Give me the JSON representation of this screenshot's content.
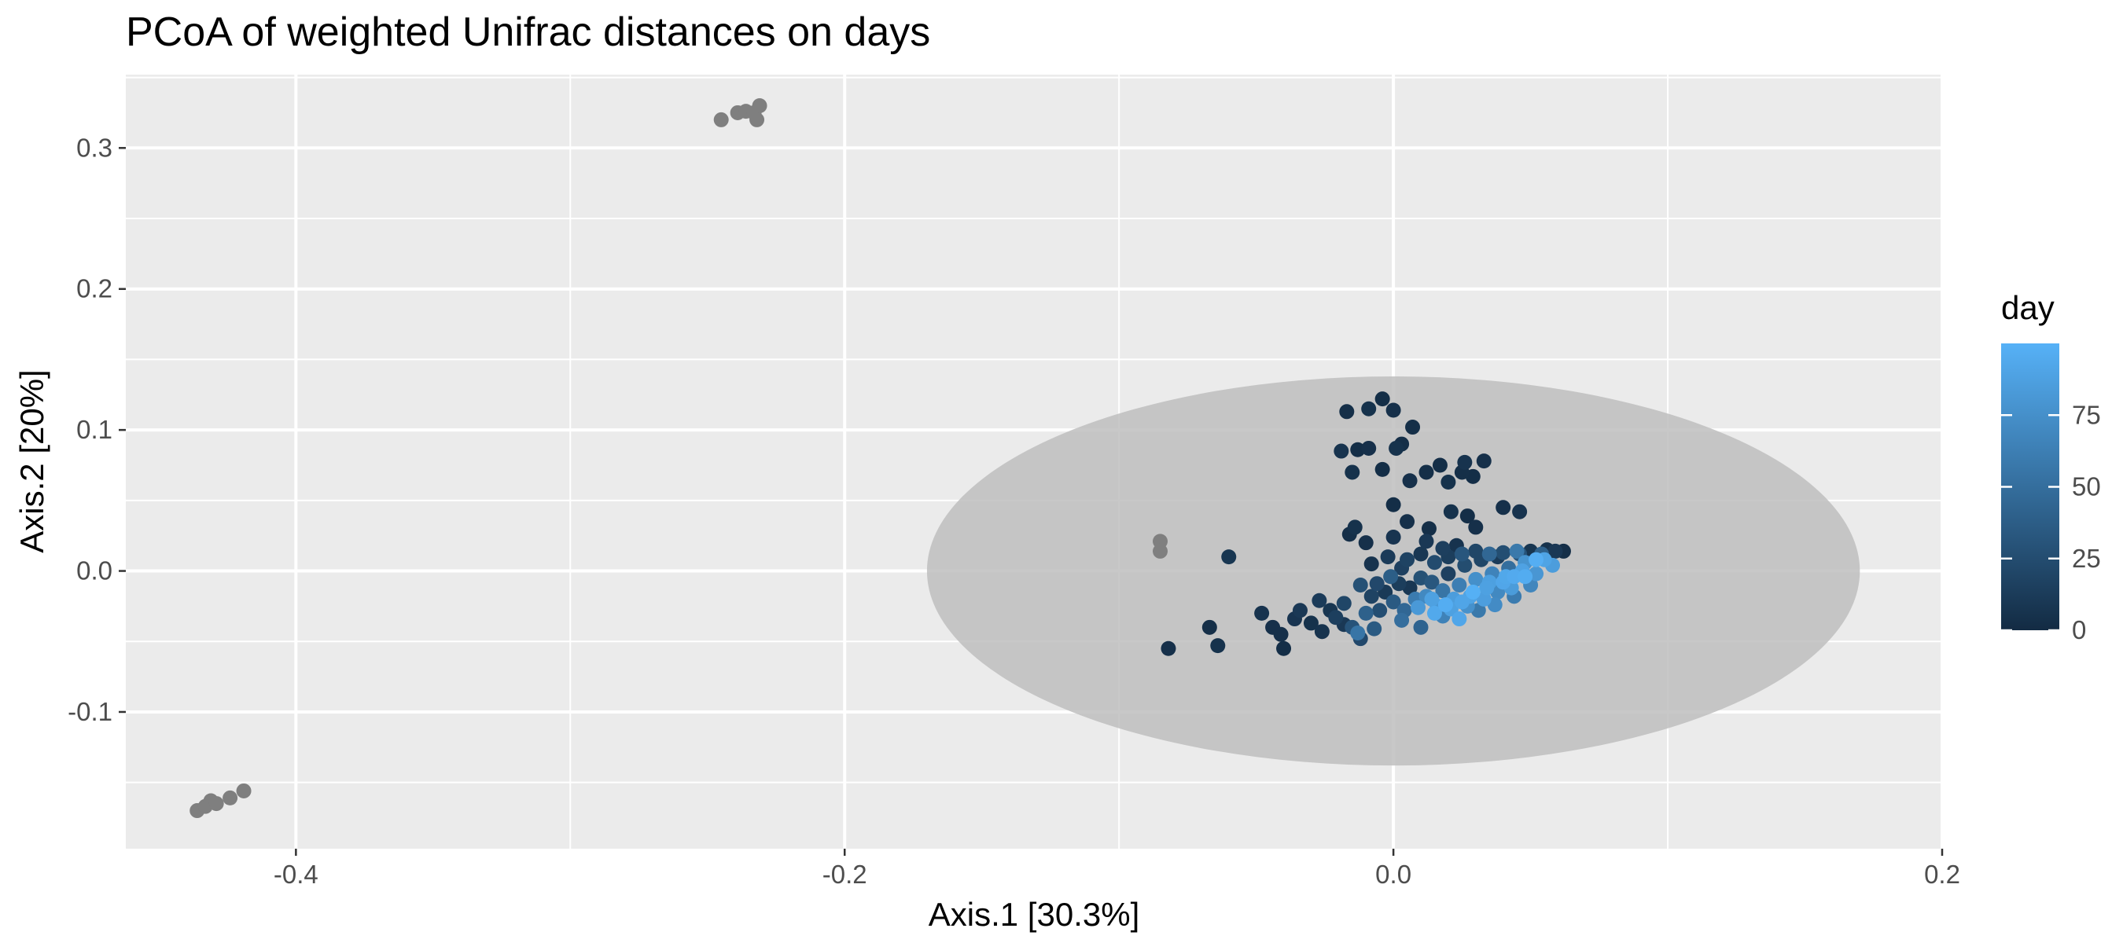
{
  "chart_data": {
    "type": "scatter",
    "title": "PCoA of weighted Unifrac distances on days",
    "xlabel": "Axis.1   [30.3%]",
    "ylabel": "Axis.2   [20%]",
    "xlim": [
      -0.462,
      0.2
    ],
    "ylim": [
      -0.197,
      0.352
    ],
    "x_ticks": [
      -0.4,
      -0.2,
      0.0,
      0.2
    ],
    "x_tick_labels": [
      "-0.4",
      "-0.2",
      "0.0",
      "0.2"
    ],
    "y_ticks": [
      -0.1,
      0.0,
      0.1,
      0.2,
      0.3
    ],
    "y_tick_labels": [
      "-0.1",
      "0.0",
      "0.1",
      "0.2",
      "0.3"
    ],
    "grid": true,
    "panel_background": "#ebebeb",
    "na_color": "#7f7f7f",
    "ellipse": {
      "cx": 0.0,
      "cy": 0.0,
      "rx": 0.17,
      "ry": 0.138,
      "color": "#bebebe"
    },
    "legend": {
      "title": "day",
      "position": "right",
      "low": 0,
      "high": 100,
      "low_color": "#132b43",
      "high_color": "#56b1f7",
      "breaks": [
        0,
        25,
        50,
        75
      ],
      "break_labels": [
        "0",
        "25",
        "50",
        "75"
      ]
    },
    "na_points": [
      [
        -0.245,
        0.32
      ],
      [
        -0.239,
        0.325
      ],
      [
        -0.236,
        0.326
      ],
      [
        -0.233,
        0.325
      ],
      [
        -0.231,
        0.33
      ],
      [
        -0.232,
        0.32
      ],
      [
        -0.436,
        -0.17
      ],
      [
        -0.433,
        -0.167
      ],
      [
        -0.431,
        -0.163
      ],
      [
        -0.429,
        -0.165
      ],
      [
        -0.424,
        -0.161
      ],
      [
        -0.419,
        -0.156
      ],
      [
        -0.085,
        0.021
      ],
      [
        -0.085,
        0.014
      ]
    ],
    "points": [
      [
        -0.017,
        0.113,
        3
      ],
      [
        -0.009,
        0.115,
        5
      ],
      [
        -0.004,
        0.122,
        2
      ],
      [
        0.0,
        0.114,
        4
      ],
      [
        0.007,
        0.102,
        3
      ],
      [
        -0.019,
        0.085,
        6
      ],
      [
        -0.013,
        0.086,
        2
      ],
      [
        -0.009,
        0.087,
        4
      ],
      [
        0.001,
        0.087,
        5
      ],
      [
        0.003,
        0.09,
        3
      ],
      [
        0.017,
        0.075,
        2
      ],
      [
        0.026,
        0.077,
        6
      ],
      [
        0.033,
        0.078,
        4
      ],
      [
        0.025,
        0.07,
        3
      ],
      [
        -0.015,
        0.07,
        5
      ],
      [
        -0.004,
        0.072,
        2
      ],
      [
        0.006,
        0.064,
        4
      ],
      [
        0.012,
        0.07,
        3
      ],
      [
        0.02,
        0.063,
        5
      ],
      [
        0.029,
        0.067,
        2
      ],
      [
        0.04,
        0.045,
        4
      ],
      [
        0.046,
        0.042,
        6
      ],
      [
        -0.016,
        0.026,
        3
      ],
      [
        -0.014,
        0.031,
        5
      ],
      [
        0.0,
        0.047,
        2
      ],
      [
        0.005,
        0.035,
        4
      ],
      [
        0.013,
        0.03,
        3
      ],
      [
        0.021,
        0.042,
        5
      ],
      [
        0.027,
        0.039,
        2
      ],
      [
        0.03,
        0.031,
        4
      ],
      [
        -0.06,
        0.01,
        8
      ],
      [
        -0.082,
        -0.055,
        4
      ],
      [
        -0.067,
        -0.04,
        3
      ],
      [
        -0.064,
        -0.053,
        5
      ],
      [
        -0.04,
        -0.055,
        2
      ],
      [
        -0.048,
        -0.03,
        6
      ],
      [
        -0.044,
        -0.04,
        4
      ],
      [
        -0.036,
        -0.034,
        7
      ],
      [
        -0.034,
        -0.028,
        10
      ],
      [
        -0.03,
        -0.037,
        5
      ],
      [
        -0.027,
        -0.021,
        12
      ],
      [
        -0.023,
        -0.028,
        8
      ],
      [
        -0.021,
        -0.033,
        15
      ],
      [
        -0.018,
        -0.023,
        20
      ],
      [
        -0.015,
        -0.04,
        30
      ],
      [
        -0.012,
        -0.048,
        22
      ],
      [
        -0.01,
        -0.03,
        40
      ],
      [
        -0.008,
        -0.018,
        18
      ],
      [
        -0.005,
        -0.028,
        26
      ],
      [
        -0.003,
        -0.015,
        11
      ],
      [
        0.0,
        -0.022,
        35
      ],
      [
        0.002,
        -0.009,
        14
      ],
      [
        0.004,
        -0.028,
        45
      ],
      [
        0.006,
        -0.012,
        9
      ],
      [
        0.008,
        -0.02,
        60
      ],
      [
        0.01,
        -0.005,
        28
      ],
      [
        0.012,
        -0.018,
        70
      ],
      [
        0.014,
        -0.008,
        33
      ],
      [
        0.016,
        -0.025,
        80
      ],
      [
        0.018,
        -0.014,
        55
      ],
      [
        0.02,
        -0.002,
        16
      ],
      [
        0.022,
        -0.02,
        85
      ],
      [
        0.024,
        -0.01,
        62
      ],
      [
        0.026,
        0.004,
        25
      ],
      [
        0.028,
        -0.018,
        90
      ],
      [
        0.03,
        -0.006,
        75
      ],
      [
        0.032,
        0.008,
        20
      ],
      [
        0.034,
        -0.012,
        88
      ],
      [
        0.036,
        -0.002,
        66
      ],
      [
        0.038,
        0.01,
        12
      ],
      [
        0.04,
        -0.008,
        92
      ],
      [
        0.042,
        0.002,
        50
      ],
      [
        0.044,
        -0.004,
        95
      ],
      [
        0.046,
        0.012,
        30
      ],
      [
        0.048,
        0.006,
        78
      ],
      [
        0.05,
        0.014,
        8
      ],
      [
        0.052,
        0.008,
        98
      ],
      [
        0.054,
        0.012,
        40
      ],
      [
        0.056,
        0.015,
        5
      ],
      [
        0.059,
        0.014,
        10
      ],
      [
        0.062,
        0.014,
        3
      ],
      [
        0.055,
        0.008,
        90
      ],
      [
        -0.008,
        0.005,
        6
      ],
      [
        -0.002,
        0.01,
        12
      ],
      [
        0.005,
        0.008,
        18
      ],
      [
        0.01,
        0.012,
        9
      ],
      [
        0.015,
        0.006,
        24
      ],
      [
        0.02,
        0.01,
        14
      ],
      [
        0.025,
        0.012,
        32
      ],
      [
        0.03,
        0.014,
        20
      ],
      [
        0.035,
        0.012,
        45
      ],
      [
        0.04,
        0.013,
        26
      ],
      [
        0.045,
        0.014,
        58
      ],
      [
        -0.006,
        -0.009,
        22
      ],
      [
        -0.001,
        -0.004,
        38
      ],
      [
        0.003,
        0.002,
        16
      ],
      [
        0.009,
        -0.026,
        82
      ],
      [
        0.015,
        -0.03,
        94
      ],
      [
        0.021,
        -0.027,
        88
      ],
      [
        0.027,
        -0.025,
        76
      ],
      [
        0.033,
        -0.02,
        86
      ],
      [
        0.038,
        -0.015,
        70
      ],
      [
        0.043,
        -0.012,
        84
      ],
      [
        0.048,
        -0.004,
        96
      ],
      [
        0.052,
        -0.002,
        80
      ],
      [
        -0.012,
        -0.01,
        28
      ],
      [
        -0.018,
        -0.038,
        10
      ],
      [
        -0.026,
        -0.043,
        6
      ],
      [
        -0.041,
        -0.045,
        4
      ],
      [
        -0.013,
        -0.044,
        55
      ],
      [
        -0.007,
        -0.041,
        35
      ],
      [
        0.003,
        -0.035,
        50
      ],
      [
        0.01,
        -0.04,
        42
      ],
      [
        0.018,
        -0.032,
        65
      ],
      [
        0.024,
        -0.034,
        92
      ],
      [
        0.031,
        -0.028,
        58
      ],
      [
        0.037,
        -0.024,
        72
      ],
      [
        0.044,
        -0.018,
        60
      ],
      [
        0.05,
        -0.01,
        68
      ],
      [
        0.014,
        -0.02,
        88
      ],
      [
        0.019,
        -0.024,
        97
      ],
      [
        0.025,
        -0.022,
        91
      ],
      [
        0.029,
        -0.015,
        99
      ],
      [
        0.035,
        -0.008,
        87
      ],
      [
        0.041,
        -0.004,
        93
      ],
      [
        0.047,
        0.0,
        89
      ],
      [
        0.058,
        0.004,
        85
      ],
      [
        -0.01,
        0.02,
        4
      ],
      [
        0.0,
        0.024,
        7
      ],
      [
        0.012,
        0.021,
        10
      ],
      [
        0.018,
        0.016,
        15
      ],
      [
        0.023,
        0.018,
        6
      ]
    ]
  }
}
